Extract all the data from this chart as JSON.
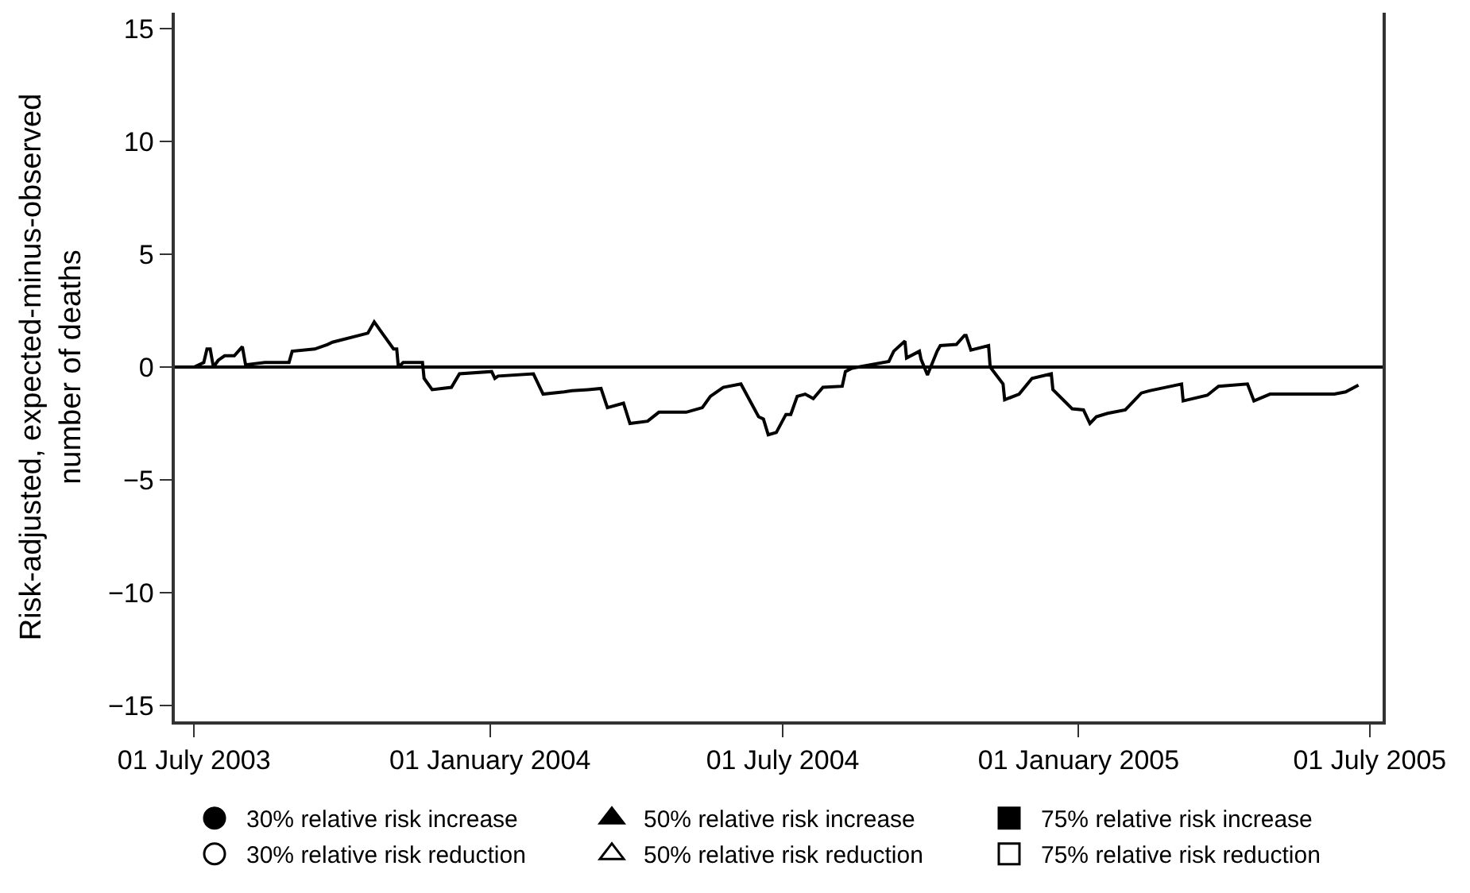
{
  "chart_data": {
    "type": "line",
    "ylabel": "Risk-adjusted, expected-minus-observed\nnumber of deaths",
    "xlim": [
      "2003-06-19",
      "2005-07-09"
    ],
    "xticks": [
      {
        "value": "2003-07-01",
        "label": "01 July 2003"
      },
      {
        "value": "2004-01-01",
        "label": "01 January 2004"
      },
      {
        "value": "2004-07-01",
        "label": "01 July 2004"
      },
      {
        "value": "2005-01-01",
        "label": "01 January 2005"
      },
      {
        "value": "2005-07-01",
        "label": "01 July 2005"
      }
    ],
    "ylim": [
      -15.7,
      15.7
    ],
    "yticks": [
      {
        "value": -15,
        "label": "−15"
      },
      {
        "value": -10,
        "label": "−10"
      },
      {
        "value": -5,
        "label": "−5"
      },
      0,
      5,
      10,
      15
    ],
    "grid": false,
    "legend": "bottom",
    "ref_lines": [
      {
        "axis": "y",
        "value": 0,
        "color": "#000000"
      }
    ],
    "series": [
      {
        "color": "#000000",
        "marker": "none",
        "line_style": "solid",
        "x": [
          "2003-07-01",
          "2003-07-07",
          "2003-07-09",
          "2003-07-11",
          "2003-07-13",
          "2003-07-16",
          "2003-07-20",
          "2003-07-26",
          "2003-07-31",
          "2003-08-02",
          "2003-08-14",
          "2003-08-29",
          "2003-08-31",
          "2003-09-14",
          "2003-09-22",
          "2003-09-25",
          "2003-10-17",
          "2003-10-21",
          "2003-10-25",
          "2003-11-02",
          "2003-11-04",
          "2003-11-05",
          "2003-11-08",
          "2003-11-20",
          "2003-11-21",
          "2003-11-26",
          "2003-12-08",
          "2003-12-13",
          "2004-01-02",
          "2004-01-04",
          "2004-01-06",
          "2004-01-28",
          "2004-02-03",
          "2004-02-16",
          "2004-02-21",
          "2004-03-02",
          "2004-03-10",
          "2004-03-14",
          "2004-03-24",
          "2004-03-28",
          "2004-04-08",
          "2004-04-15",
          "2004-05-02",
          "2004-05-12",
          "2004-05-17",
          "2004-05-25",
          "2004-06-05",
          "2004-06-16",
          "2004-06-19",
          "2004-06-22",
          "2004-06-27",
          "2004-07-03",
          "2004-07-06",
          "2004-07-10",
          "2004-07-15",
          "2004-07-20",
          "2004-07-26",
          "2004-08-07",
          "2004-08-09",
          "2004-08-13",
          "2004-09-05",
          "2004-09-08",
          "2004-09-15",
          "2004-09-16",
          "2004-09-24",
          "2004-09-25",
          "2004-09-29",
          "2004-10-05",
          "2004-10-07",
          "2004-10-17",
          "2004-10-22",
          "2004-10-23",
          "2004-10-26",
          "2004-11-06",
          "2004-11-07",
          "2004-11-15",
          "2004-11-16",
          "2004-11-25",
          "2004-12-03",
          "2004-12-15",
          "2004-12-16",
          "2004-12-28",
          "2005-01-04",
          "2005-01-08",
          "2005-01-12",
          "2005-01-19",
          "2005-01-30",
          "2005-02-09",
          "2005-02-14",
          "2005-03-06",
          "2005-03-07",
          "2005-03-22",
          "2005-03-29",
          "2005-04-16",
          "2005-04-20",
          "2005-04-30",
          "2005-06-09",
          "2005-06-16",
          "2005-06-24"
        ],
        "values": [
          0,
          0.2,
          0.8,
          0.8,
          0,
          0.3,
          0.5,
          0.5,
          0.9,
          0.1,
          0.2,
          0.2,
          0.7,
          0.8,
          1.0,
          1.1,
          1.5,
          2.0,
          1.6,
          0.8,
          0.8,
          0,
          0.2,
          0.2,
          -0.5,
          -1.0,
          -0.9,
          -0.3,
          -0.2,
          -0.5,
          -0.4,
          -0.3,
          -1.2,
          -1.1,
          -1.05,
          -1.0,
          -0.95,
          -1.8,
          -1.6,
          -2.5,
          -2.4,
          -2.0,
          -2.0,
          -1.8,
          -1.3,
          -0.9,
          -0.75,
          -2.2,
          -2.3,
          -3.0,
          -2.9,
          -2.1,
          -2.1,
          -1.3,
          -1.2,
          -1.4,
          -0.9,
          -0.85,
          -0.2,
          -0.05,
          0.25,
          0.7,
          1.15,
          0.4,
          0.7,
          0.35,
          -0.35,
          0.7,
          0.95,
          1.0,
          1.4,
          1.4,
          0.75,
          0.95,
          0,
          -0.75,
          -1.45,
          -1.2,
          -0.5,
          -0.3,
          -1.0,
          -1.85,
          -1.9,
          -2.5,
          -2.2,
          -2.05,
          -1.9,
          -1.15,
          -1.05,
          -0.75,
          -1.5,
          -1.25,
          -0.85,
          -0.75,
          -1.5,
          -1.2,
          -1.2,
          -1.1,
          -0.8
        ]
      },
      {
        "type": "scatter",
        "name": "30% relative risk increase",
        "color": "#000000",
        "marker": "circle",
        "values": [
          null
        ]
      },
      {
        "type": "scatter",
        "name": "50% relative risk increase",
        "color": "#000000",
        "marker": "triangle",
        "values": [
          null
        ]
      },
      {
        "type": "scatter",
        "name": "75% relative risk increase",
        "color": "#000000",
        "marker": "square",
        "values": [
          null
        ]
      },
      {
        "type": "scatter",
        "name": "30% relative risk reduction",
        "color": "#000000",
        "marker": "circle-open",
        "values": [
          null
        ]
      },
      {
        "type": "scatter",
        "name": "50% relative risk reduction",
        "color": "#000000",
        "marker": "triangle-open",
        "values": [
          null
        ]
      },
      {
        "type": "scatter",
        "name": "75% relative risk reduction",
        "color": "#000000",
        "marker": "square-open",
        "values": [
          null
        ]
      }
    ]
  }
}
